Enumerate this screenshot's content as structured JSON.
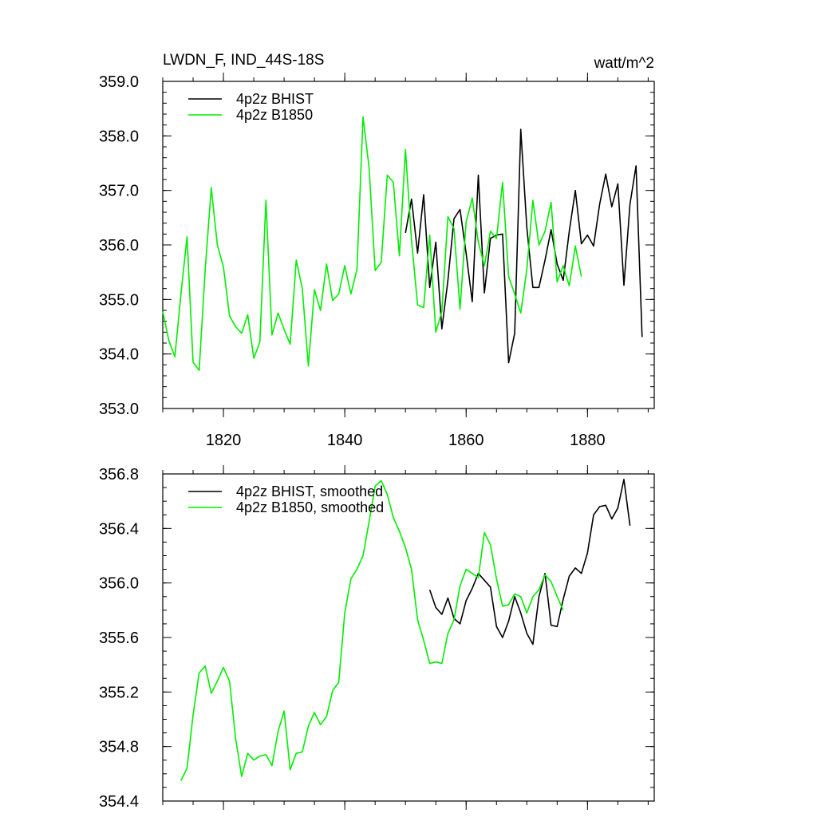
{
  "chart_data": [
    {
      "type": "line",
      "title": "LWDN_F, IND_44S-18S",
      "units": "watt/m^2",
      "xlim": [
        1810,
        1891
      ],
      "ylim": [
        353.0,
        359.0
      ],
      "xticks": [
        1820,
        1840,
        1860,
        1880
      ],
      "yticks": [
        353.0,
        354.0,
        355.0,
        356.0,
        357.0,
        358.0,
        359.0
      ],
      "ytick_labels": [
        "353.0",
        "354.0",
        "355.0",
        "356.0",
        "357.0",
        "358.0",
        "359.0"
      ],
      "x_minor_step": 5,
      "y_minor_step": 0.2,
      "grid": false,
      "legend": "top-left",
      "series": [
        {
          "name": "4p2z BHIST",
          "color": "#000000",
          "x_start": 1850,
          "values": [
            356.22,
            356.84,
            355.85,
            356.92,
            355.22,
            356.05,
            354.46,
            355.35,
            356.48,
            356.65,
            355.85,
            354.96,
            357.28,
            355.12,
            356.12,
            356.18,
            356.2,
            353.84,
            354.38,
            358.12,
            356.32,
            355.22,
            355.22,
            355.72,
            356.28,
            355.65,
            355.35,
            356.25,
            357.0,
            356.02,
            356.18,
            355.98,
            356.75,
            357.3,
            356.7,
            357.12,
            355.26,
            356.75,
            357.45,
            354.31
          ]
        },
        {
          "name": "4p2z B1850",
          "color": "#00ee00",
          "x_start": 1810,
          "values": [
            354.78,
            354.25,
            353.95,
            355.1,
            356.15,
            353.85,
            353.7,
            355.55,
            357.05,
            356.0,
            355.6,
            354.7,
            354.5,
            354.38,
            354.72,
            353.92,
            354.22,
            356.82,
            354.35,
            354.75,
            354.45,
            354.18,
            355.72,
            355.2,
            353.78,
            355.18,
            354.8,
            355.65,
            354.98,
            355.1,
            355.62,
            355.1,
            355.55,
            358.35,
            357.42,
            355.53,
            355.68,
            357.28,
            357.15,
            355.8,
            357.75,
            356.08,
            354.9,
            354.85,
            356.18,
            354.4,
            354.78,
            356.52,
            356.3,
            354.82,
            356.42,
            356.86,
            356.05,
            355.62,
            356.25,
            356.12,
            357.15,
            355.42,
            355.1,
            354.75,
            355.55,
            356.82,
            356.0,
            356.25,
            356.78,
            355.32,
            355.62,
            355.25,
            355.98,
            355.42
          ]
        }
      ]
    },
    {
      "type": "line",
      "xlim": [
        1810,
        1891
      ],
      "ylim": [
        354.4,
        356.8
      ],
      "xticks": [
        1820,
        1840,
        1860,
        1880
      ],
      "yticks": [
        354.4,
        354.8,
        355.2,
        355.6,
        356.0,
        356.4,
        356.8
      ],
      "ytick_labels": [
        "354.4",
        "354.8",
        "355.2",
        "355.6",
        "356.0",
        "356.4",
        "356.8"
      ],
      "x_minor_step": 5,
      "y_minor_step": 0.1,
      "grid": false,
      "legend": "top-left",
      "series": [
        {
          "name": "4p2z BHIST, smoothed",
          "color": "#000000",
          "x_start": 1854,
          "values": [
            355.95,
            355.82,
            355.77,
            355.89,
            355.74,
            355.7,
            355.87,
            355.96,
            356.07,
            356.02,
            355.97,
            355.68,
            355.6,
            355.72,
            355.9,
            355.78,
            355.63,
            355.55,
            355.9,
            356.07,
            355.69,
            355.68,
            355.88,
            356.05,
            356.11,
            356.07,
            356.22,
            356.5,
            356.56,
            356.57,
            356.47,
            356.55,
            356.76,
            356.42
          ]
        },
        {
          "name": "4p2z B1850, smoothed",
          "color": "#00ee00",
          "x_start": 1813,
          "values": [
            354.55,
            354.64,
            355.03,
            355.34,
            355.39,
            355.19,
            355.28,
            355.38,
            355.28,
            354.86,
            354.58,
            354.75,
            354.7,
            354.73,
            354.74,
            354.66,
            354.91,
            355.06,
            354.63,
            354.75,
            354.76,
            354.95,
            355.05,
            354.96,
            355.02,
            355.21,
            355.27,
            355.78,
            356.03,
            356.1,
            356.2,
            356.45,
            356.71,
            356.75,
            356.65,
            356.48,
            356.38,
            356.26,
            356.1,
            355.73,
            355.58,
            355.41,
            355.42,
            355.41,
            355.63,
            355.73,
            355.98,
            356.1,
            356.07,
            356.04,
            356.37,
            356.28,
            356.03,
            355.83,
            355.84,
            355.92,
            355.9,
            355.78,
            355.9,
            355.95,
            356.06,
            356.01,
            355.9,
            355.8
          ]
        }
      ]
    }
  ]
}
